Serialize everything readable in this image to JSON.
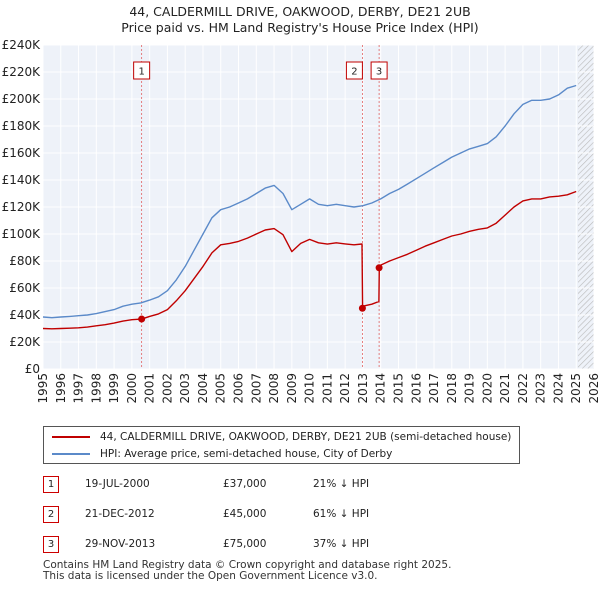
{
  "title_line1": "44, CALDERMILL DRIVE, OAKWOOD, DERBY, DE21 2UB",
  "title_line2": "Price paid vs. HM Land Registry's House Price Index (HPI)",
  "chart_data": {
    "type": "line",
    "title": "Price paid vs. HM Land Registry's House Price Index (HPI)",
    "xlim": [
      1995,
      2026
    ],
    "ylim": [
      0,
      240000
    ],
    "y_ticks": [
      0,
      20000,
      40000,
      60000,
      80000,
      100000,
      120000,
      140000,
      160000,
      180000,
      200000,
      220000,
      240000
    ],
    "y_tick_labels": [
      "£0",
      "£20K",
      "£40K",
      "£60K",
      "£80K",
      "£100K",
      "£120K",
      "£140K",
      "£160K",
      "£180K",
      "£200K",
      "£220K",
      "£240K"
    ],
    "x_ticks": [
      1995,
      1996,
      1997,
      1998,
      1999,
      2000,
      2001,
      2002,
      2003,
      2004,
      2005,
      2006,
      2007,
      2008,
      2009,
      2010,
      2011,
      2012,
      2013,
      2014,
      2015,
      2016,
      2017,
      2018,
      2019,
      2020,
      2021,
      2022,
      2023,
      2024,
      2025,
      2026
    ],
    "x_tick_labels": [
      "1995",
      "1996",
      "1997",
      "1998",
      "1999",
      "2000",
      "2001",
      "2002",
      "2003",
      "2004",
      "2005",
      "2006",
      "2007",
      "2008",
      "2009",
      "2010",
      "2011",
      "2012",
      "2013",
      "2014",
      "2015",
      "2016",
      "2017",
      "2018",
      "2019",
      "2020",
      "2021",
      "2022",
      "2023",
      "2024",
      "2025",
      "2026"
    ],
    "forecast_start": 2025.1,
    "series": [
      {
        "name": "HPI: Average price, semi-detached house, City of Derby",
        "color": "#5b8ac9",
        "x": [
          1995,
          1995.5,
          1996,
          1996.5,
          1997,
          1997.5,
          1998,
          1998.5,
          1999,
          1999.5,
          2000,
          2000.5,
          2001,
          2001.5,
          2002,
          2002.5,
          2003,
          2003.5,
          2004,
          2004.5,
          2005,
          2005.5,
          2006,
          2006.5,
          2007,
          2007.5,
          2008,
          2008.5,
          2009,
          2009.5,
          2010,
          2010.5,
          2011,
          2011.5,
          2012,
          2012.5,
          2013,
          2013.5,
          2014,
          2014.5,
          2015,
          2015.5,
          2016,
          2016.5,
          2017,
          2017.5,
          2018,
          2018.5,
          2019,
          2019.5,
          2020,
          2020.5,
          2021,
          2021.5,
          2022,
          2022.5,
          2023,
          2023.5,
          2024,
          2024.5,
          2025
        ],
        "values": [
          38500,
          38000,
          38500,
          39000,
          39500,
          40000,
          41000,
          42500,
          44000,
          46500,
          48000,
          49000,
          51000,
          53500,
          58000,
          66000,
          76000,
          88000,
          100000,
          112000,
          118000,
          120000,
          123000,
          126000,
          130000,
          134000,
          136000,
          130000,
          118000,
          122000,
          126000,
          122000,
          121000,
          122000,
          121000,
          120000,
          121000,
          123000,
          126000,
          130000,
          133000,
          137000,
          141000,
          145000,
          149000,
          153000,
          157000,
          160000,
          163000,
          165000,
          167000,
          172000,
          180000,
          189000,
          196000,
          199000,
          199000,
          200000,
          203000,
          208000,
          210000
        ]
      },
      {
        "name": "44, CALDERMILL DRIVE, OAKWOOD, DERBY, DE21 2UB (semi-detached house)",
        "color": "#c00000",
        "x": [
          1995,
          1995.5,
          1996,
          1996.5,
          1997,
          1997.5,
          1998,
          1998.5,
          1999,
          1999.5,
          2000,
          2000.55,
          2001,
          2001.5,
          2002,
          2002.5,
          2003,
          2003.5,
          2004,
          2004.5,
          2005,
          2005.5,
          2006,
          2006.5,
          2007,
          2007.5,
          2008,
          2008.5,
          2009,
          2009.5,
          2010,
          2010.5,
          2011,
          2011.5,
          2012,
          2012.5,
          2012.95,
          2012.98,
          2013,
          2013.5,
          2013.9,
          2013.92,
          2014,
          2014.5,
          2015,
          2015.5,
          2016,
          2016.5,
          2017,
          2017.5,
          2018,
          2018.5,
          2019,
          2019.5,
          2020,
          2020.5,
          2021,
          2021.5,
          2022,
          2022.5,
          2023,
          2023.5,
          2024,
          2024.5,
          2025
        ],
        "values": [
          30000,
          29800,
          30000,
          30200,
          30500,
          31000,
          32000,
          32800,
          34000,
          35500,
          36500,
          37000,
          39000,
          40800,
          44000,
          50500,
          58000,
          67000,
          76000,
          86000,
          92000,
          93000,
          94500,
          97000,
          100000,
          103000,
          104000,
          99500,
          87000,
          93000,
          96000,
          93500,
          92500,
          93500,
          92700,
          92000,
          92600,
          45000,
          46500,
          48000,
          50000,
          75000,
          77000,
          80000,
          82500,
          85000,
          88000,
          91000,
          93500,
          96000,
          98500,
          100000,
          102000,
          103500,
          104500,
          108000,
          114000,
          120000,
          124500,
          126000,
          126000,
          127500,
          128000,
          129000,
          131500
        ]
      }
    ],
    "sales": [
      {
        "label": "1",
        "date": "19-JUL-2000",
        "x": 2000.55,
        "price": 37000,
        "hpi_diff": "21% ↓ HPI"
      },
      {
        "label": "2",
        "date": "21-DEC-2012",
        "x": 2012.97,
        "price": 45000,
        "hpi_diff": "61% ↓ HPI"
      },
      {
        "label": "3",
        "date": "29-NOV-2013",
        "x": 2013.91,
        "price": 75000,
        "hpi_diff": "37% ↓ HPI"
      }
    ]
  },
  "legend": {
    "property_label": "44, CALDERMILL DRIVE, OAKWOOD, DERBY, DE21 2UB (semi-detached house)",
    "hpi_label": "HPI: Average price, semi-detached house, City of Derby"
  },
  "transactions": [
    {
      "num": "1",
      "date": "19-JUL-2000",
      "price": "£37,000",
      "hpi": "21% ↓ HPI"
    },
    {
      "num": "2",
      "date": "21-DEC-2012",
      "price": "£45,000",
      "hpi": "61% ↓ HPI"
    },
    {
      "num": "3",
      "date": "29-NOV-2013",
      "price": "£75,000",
      "hpi": "37% ↓ HPI"
    }
  ],
  "footer_line1": "Contains HM Land Registry data © Crown copyright and database right 2025.",
  "footer_line2": "This data is licensed under the Open Government Licence v3.0."
}
